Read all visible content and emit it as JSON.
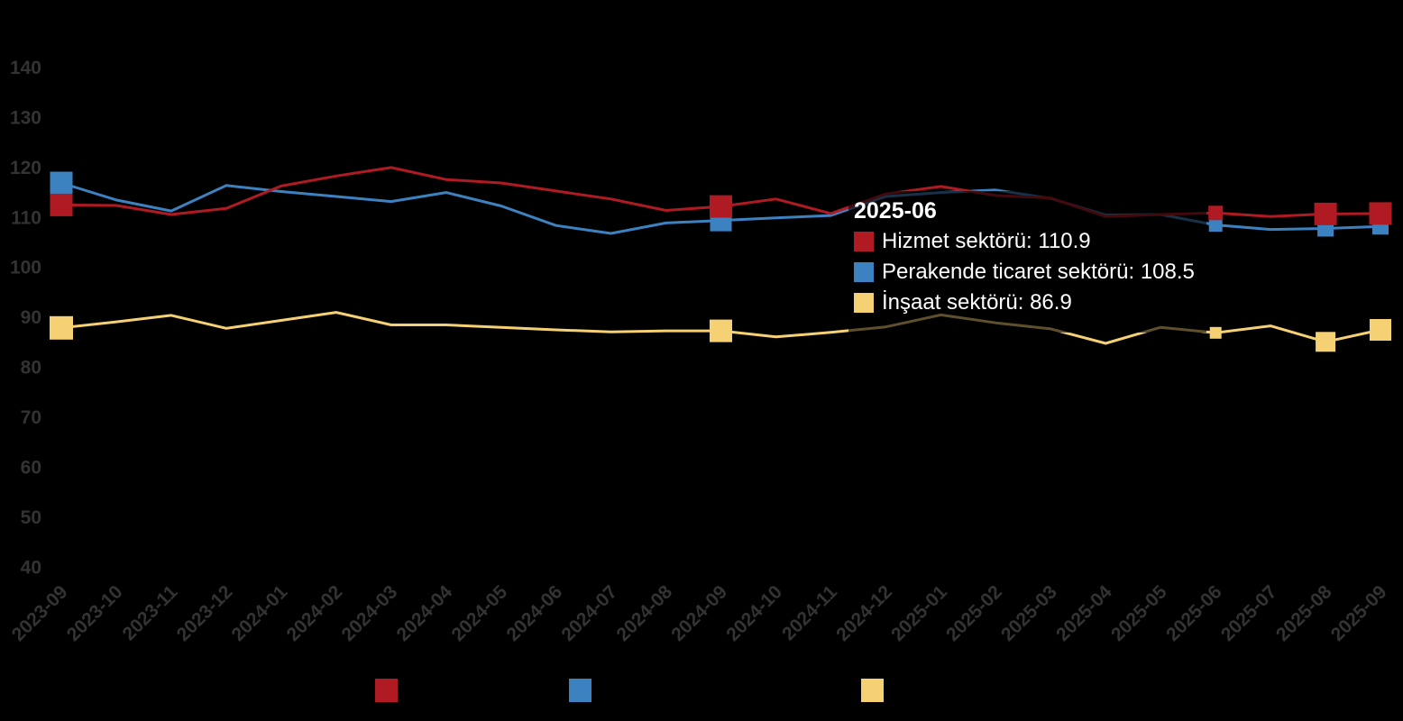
{
  "colors": {
    "background": "#000000",
    "axis_label": "#333333",
    "tooltip_text": "#ffffff",
    "hizmet_red": "#b01b23",
    "perakende_blue": "#3d82c0",
    "insaat_yellow": "#f6d173"
  },
  "tooltip": {
    "title": "2025-06",
    "rows": [
      {
        "label": "Hizmet sektörü",
        "value": "110.9",
        "text": "Hizmet sektörü: 110.9",
        "color": "#b01b23"
      },
      {
        "label": "Perakende ticaret sektörü",
        "value": "108.5",
        "text": "Perakende ticaret sektörü: 108.5",
        "color": "#3d82c0"
      },
      {
        "label": "İnşaat sektörü",
        "value": "86.9",
        "text": "İnşaat sektörü: 86.9",
        "color": "#f6d173"
      }
    ]
  },
  "chart_data": {
    "type": "line",
    "title": "",
    "xlabel": "",
    "ylabel": "",
    "grid": false,
    "x_label_rotation": -45,
    "ylim": [
      40,
      140
    ],
    "y_axis": {
      "min": 40,
      "max": 140,
      "step": 10,
      "ticks": [
        140,
        130,
        120,
        110,
        100,
        90,
        80,
        70,
        60,
        50,
        40
      ]
    },
    "categories": [
      "2023-09",
      "2023-10",
      "2023-11",
      "2023-12",
      "2024-01",
      "2024-02",
      "2024-03",
      "2024-04",
      "2024-05",
      "2024-06",
      "2024-07",
      "2024-08",
      "2024-09",
      "2024-10",
      "2024-11",
      "2024-12",
      "2025-01",
      "2025-02",
      "2025-03",
      "2025-04",
      "2025-05",
      "2025-06",
      "2025-07",
      "2025-08",
      "2025-09"
    ],
    "hovered_category": "2025-06",
    "series": [
      {
        "name": "Hizmet sektörü",
        "color": "#b01b23",
        "values": [
          112.5,
          112.4,
          110.6,
          111.8,
          116.3,
          118.3,
          120.0,
          117.6,
          116.9,
          115.3,
          113.7,
          111.4,
          112.2,
          113.7,
          110.8,
          114.7,
          116.2,
          114.4,
          113.9,
          110.2,
          110.6,
          110.9,
          110.2,
          110.7,
          110.8
        ],
        "highlight_points": [
          {
            "index": 0,
            "size": 25
          },
          {
            "index": 12,
            "size": 25
          },
          {
            "index": 21,
            "size": 16
          },
          {
            "index": 23,
            "size": 25
          },
          {
            "index": 24,
            "size": 25
          }
        ]
      },
      {
        "name": "Perakende ticaret sektörü",
        "color": "#3d82c0",
        "values": [
          116.9,
          113.5,
          111.3,
          116.4,
          115.2,
          114.2,
          113.2,
          115.0,
          112.3,
          108.4,
          106.8,
          108.9,
          109.4,
          109.9,
          110.4,
          114.2,
          115.0,
          115.5,
          113.8,
          110.5,
          110.6,
          108.5,
          107.6,
          107.8,
          108.2
        ],
        "highlight_points": [
          {
            "index": 0,
            "size": 25
          },
          {
            "index": 12,
            "size": 24
          },
          {
            "index": 21,
            "size": 15
          },
          {
            "index": 23,
            "size": 18
          },
          {
            "index": 24,
            "size": 18
          }
        ]
      },
      {
        "name": "İnşaat sektörü",
        "color": "#f6d173",
        "values": [
          87.9,
          89.1,
          90.4,
          87.8,
          89.4,
          91.0,
          88.5,
          88.5,
          88.0,
          87.5,
          87.1,
          87.3,
          87.3,
          86.1,
          87.0,
          88.1,
          90.5,
          88.9,
          87.7,
          84.8,
          88.0,
          86.9,
          88.3,
          85.1,
          87.5
        ],
        "highlight_points": [
          {
            "index": 0,
            "size": 26
          },
          {
            "index": 12,
            "size": 25
          },
          {
            "index": 21,
            "size": 13
          },
          {
            "index": 23,
            "size": 22
          },
          {
            "index": 24,
            "size": 24
          }
        ]
      }
    ],
    "legend": {
      "position": "bottom",
      "labels_visible": false
    }
  }
}
